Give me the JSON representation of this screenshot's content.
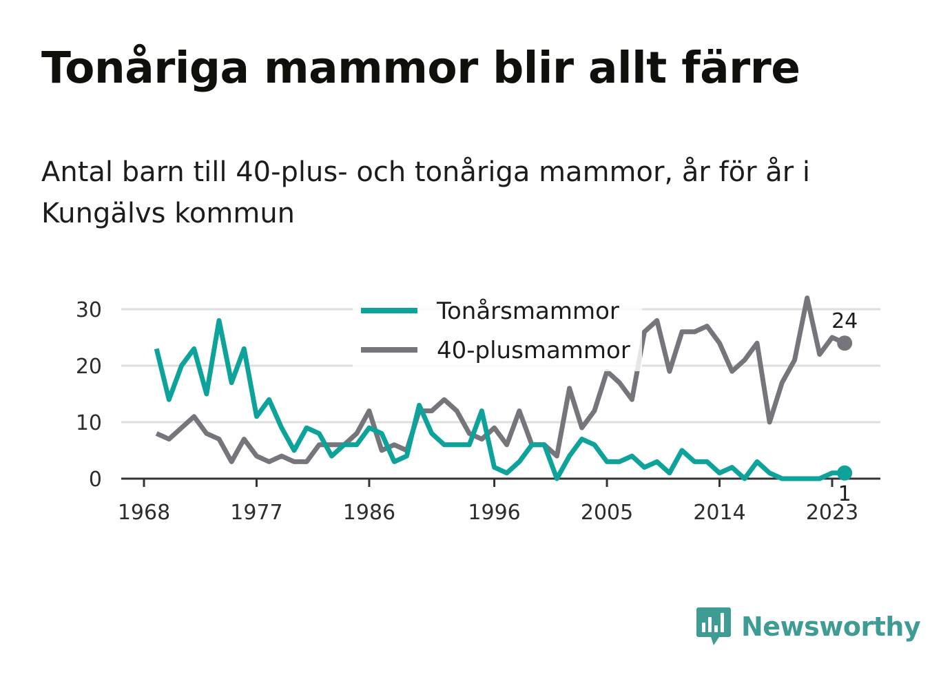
{
  "title": "Tonåriga mammor blir allt färre",
  "subtitle": "Antal barn till 40-plus- och tonåriga mammor, år för år i Kungälvs kommun",
  "brand": {
    "name": "Newsworthy",
    "icon": "bar-chart-speech-bubble-icon",
    "color": "#3e9c94"
  },
  "chart_data": {
    "type": "line",
    "title": "Tonåriga mammor blir allt färre",
    "subtitle": "Antal barn till 40-plus- och tonåriga mammor, år för år i Kungälvs kommun",
    "xlabel": "",
    "ylabel": "",
    "x_ticks": [
      1968,
      1977,
      1986,
      1996,
      2005,
      2014,
      2023
    ],
    "y_ticks": [
      0,
      10,
      20,
      30
    ],
    "xlim": [
      1967,
      2026
    ],
    "ylim": [
      0,
      32
    ],
    "grid": "horizontal",
    "legend_position": "top-center",
    "x": [
      1969,
      1970,
      1971,
      1972,
      1973,
      1974,
      1975,
      1976,
      1977,
      1978,
      1979,
      1980,
      1981,
      1982,
      1983,
      1984,
      1985,
      1986,
      1987,
      1988,
      1989,
      1990,
      1991,
      1992,
      1993,
      1994,
      1995,
      1996,
      1997,
      1998,
      1999,
      2000,
      2001,
      2002,
      2003,
      2004,
      2005,
      2006,
      2007,
      2008,
      2009,
      2010,
      2011,
      2012,
      2013,
      2014,
      2015,
      2016,
      2017,
      2018,
      2019,
      2020,
      2021,
      2022,
      2023,
      2024
    ],
    "series": [
      {
        "name": "Tonårsmammor",
        "color": "#0da39a",
        "values": [
          23,
          14,
          20,
          23,
          15,
          28,
          17,
          23,
          11,
          14,
          9,
          5,
          9,
          8,
          4,
          6,
          6,
          9,
          8,
          3,
          4,
          13,
          8,
          6,
          6,
          6,
          12,
          2,
          1,
          3,
          6,
          6,
          0,
          4,
          7,
          6,
          3,
          3,
          4,
          2,
          3,
          1,
          5,
          3,
          3,
          1,
          2,
          0,
          3,
          1,
          0,
          0,
          0,
          0,
          1,
          1
        ],
        "end_label": "1"
      },
      {
        "name": "40-plusmammor",
        "color": "#76757b",
        "values": [
          8,
          7,
          9,
          11,
          8,
          7,
          3,
          7,
          4,
          3,
          4,
          3,
          3,
          6,
          6,
          6,
          8,
          12,
          5,
          6,
          5,
          12,
          12,
          14,
          12,
          8,
          7,
          9,
          6,
          12,
          6,
          6,
          4,
          16,
          9,
          12,
          19,
          17,
          14,
          26,
          28,
          19,
          26,
          26,
          27,
          24,
          19,
          21,
          24,
          10,
          17,
          21,
          32,
          22,
          25,
          24
        ],
        "end_label": "24"
      }
    ]
  }
}
